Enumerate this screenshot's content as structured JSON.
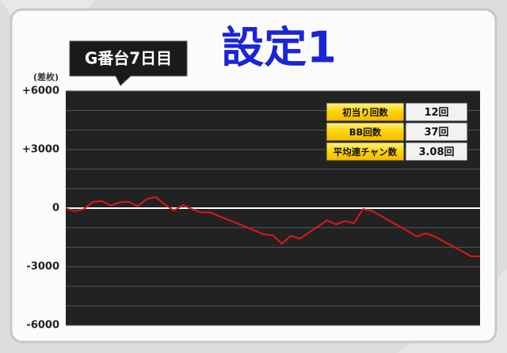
{
  "chart_data": {
    "type": "line",
    "title": "設定1",
    "badge": "G番台7日目",
    "y_label": "(差枚)",
    "color": "#e01818",
    "zero_line_color": "#ffffff",
    "grid": true,
    "ylim": [
      -6000,
      6000
    ],
    "yticks": [
      {
        "value": 6000,
        "label": "+6000"
      },
      {
        "value": 3000,
        "label": "+3000"
      },
      0,
      -3000,
      -6000
    ],
    "yminor": [
      5000,
      4000,
      2000,
      1000,
      -1000,
      -2000,
      -4000,
      -5000
    ],
    "values": [
      0,
      -160,
      -50,
      320,
      360,
      140,
      300,
      330,
      100,
      470,
      570,
      180,
      -120,
      150,
      -40,
      -220,
      -210,
      -400,
      -590,
      -770,
      -960,
      -1150,
      -1340,
      -1390,
      -1820,
      -1420,
      -1560,
      -1250,
      -940,
      -630,
      -830,
      -660,
      -770,
      -40,
      -140,
      -400,
      -660,
      -920,
      -1180,
      -1450,
      -1290,
      -1460,
      -1710,
      -1960,
      -2210,
      -2460,
      -2470
    ],
    "stats": [
      {
        "label": "初当り回数",
        "value": "12回"
      },
      {
        "label": "BB回数",
        "value": "37回"
      },
      {
        "label": "平均連チャン数",
        "value": "3.08回"
      }
    ]
  }
}
